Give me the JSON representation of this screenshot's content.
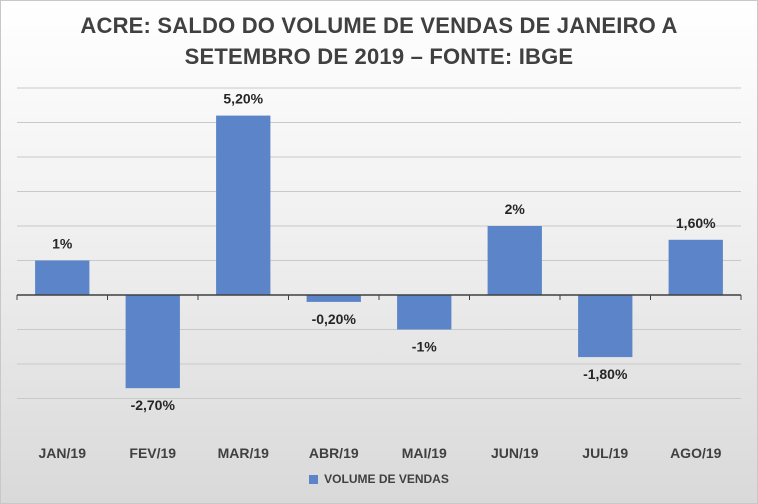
{
  "chart_data": {
    "type": "bar",
    "title_line1": "ACRE: SALDO DO VOLUME DE VENDAS DE JANEIRO A",
    "title_line2": "SETEMBRO DE 2019 – FONTE: IBGE",
    "categories": [
      "JAN/19",
      "FEV/19",
      "MAR/19",
      "ABR/19",
      "MAI/19",
      "JUN/19",
      "JUL/19",
      "AGO/19"
    ],
    "series": [
      {
        "name": "VOLUME DE VENDAS",
        "values": [
          1.0,
          -2.7,
          5.2,
          -0.2,
          -1.0,
          2.0,
          -1.8,
          1.6
        ],
        "labels": [
          "1%",
          "-2,70%",
          "5,20%",
          "-0,20%",
          "-1%",
          "2%",
          "-1,80%",
          "1,60%"
        ]
      }
    ],
    "ylim": [
      -4,
      6
    ],
    "grid": true,
    "legend_position": "bottom",
    "bar_color": "#5b84c9"
  }
}
